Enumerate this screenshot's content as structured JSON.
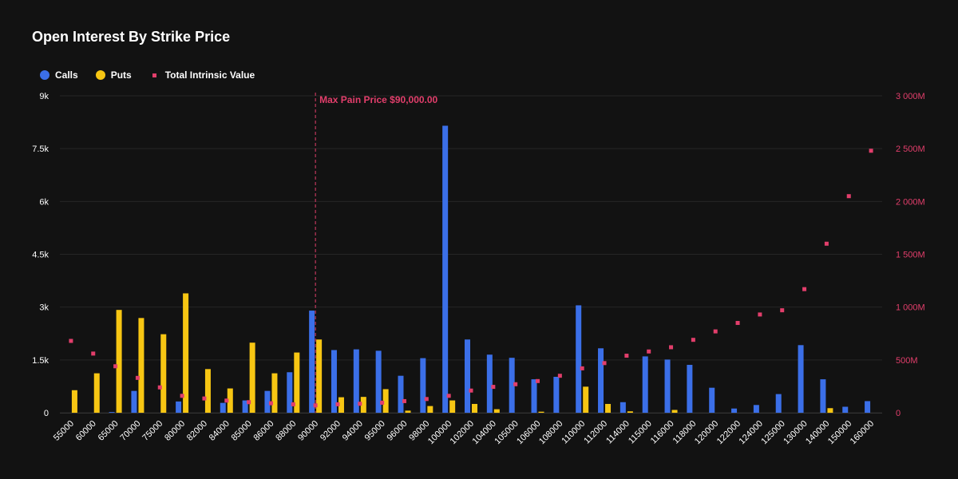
{
  "chart_data": {
    "type": "bar",
    "title": "Open Interest By Strike Price",
    "categories": [
      "55000",
      "60000",
      "65000",
      "70000",
      "75000",
      "80000",
      "82000",
      "84000",
      "85000",
      "86000",
      "88000",
      "90000",
      "92000",
      "94000",
      "95000",
      "96000",
      "98000",
      "100000",
      "102000",
      "104000",
      "105000",
      "106000",
      "108000",
      "110000",
      "112000",
      "114000",
      "115000",
      "116000",
      "118000",
      "120000",
      "122000",
      "124000",
      "125000",
      "130000",
      "140000",
      "150000",
      "160000"
    ],
    "series": [
      {
        "name": "Calls",
        "type": "bar",
        "axis": "left",
        "color": "#3B6FE8",
        "values": [
          0,
          0,
          20,
          620,
          0,
          320,
          0,
          280,
          350,
          620,
          1150,
          2900,
          1780,
          1800,
          1760,
          1050,
          1550,
          8150,
          2080,
          1650,
          1560,
          950,
          1020,
          3050,
          1830,
          300,
          1600,
          1510,
          1360,
          710,
          120,
          220,
          530,
          1920,
          950,
          170,
          330
        ]
      },
      {
        "name": "Puts",
        "type": "bar",
        "axis": "left",
        "color": "#F7C613",
        "values": [
          640,
          1120,
          2920,
          2690,
          2230,
          3390,
          1240,
          690,
          1990,
          1120,
          1710,
          2080,
          440,
          450,
          670,
          60,
          190,
          350,
          250,
          100,
          0,
          30,
          0,
          740,
          250,
          40,
          0,
          80,
          0,
          0,
          0,
          0,
          0,
          0,
          130,
          0,
          0
        ]
      },
      {
        "name": "Total Intrinsic Value",
        "type": "scatter",
        "axis": "right",
        "color": "#E23E6B",
        "values": [
          680,
          560,
          440,
          330,
          240,
          160,
          135,
          115,
          100,
          90,
          80,
          70,
          80,
          85,
          95,
          110,
          130,
          160,
          210,
          245,
          270,
          300,
          350,
          420,
          470,
          540,
          580,
          620,
          690,
          770,
          850,
          930,
          970,
          1170,
          1600,
          2050,
          2480
        ]
      }
    ],
    "y_left": {
      "min": 0,
      "max": 9000,
      "ticks": [
        0,
        1500,
        3000,
        4500,
        6000,
        7500,
        9000
      ],
      "tick_labels": [
        "0",
        "1.5k",
        "3k",
        "4.5k",
        "6k",
        "7.5k",
        "9k"
      ]
    },
    "y_right": {
      "min": 0,
      "max": 3000,
      "ticks": [
        0,
        500,
        1000,
        1500,
        2000,
        2500,
        3000
      ],
      "tick_labels": [
        "0",
        "500M",
        "1 000M",
        "1 500M",
        "2 000M",
        "2 500M",
        "3 000M"
      ],
      "unit": "M",
      "color": "#E23E6B"
    },
    "annotation": {
      "label": "Max Pain Price $90,000.00",
      "category": "90000",
      "color": "#E23E6B"
    },
    "legend": {
      "placement": "top-left"
    },
    "grid": true
  }
}
